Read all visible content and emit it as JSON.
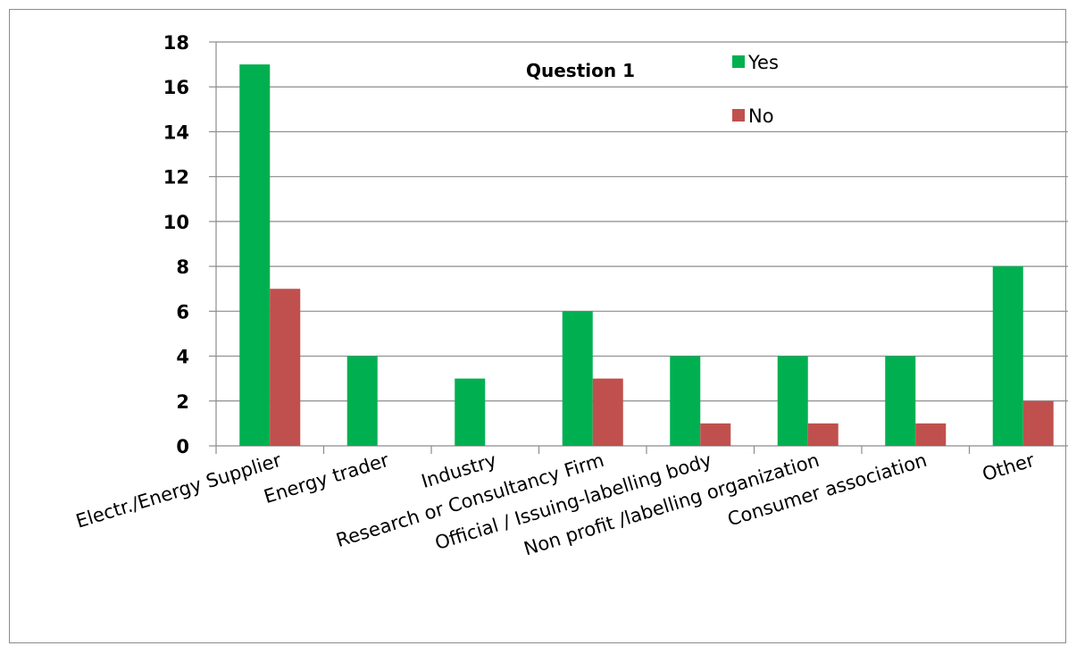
{
  "chart_data": {
    "type": "bar",
    "title": "Question 1",
    "xlabel": "",
    "ylabel": "",
    "categories": [
      "Electr./Energy Supplier",
      "Energy trader",
      "Industry",
      "Research or Consultancy Firm",
      "Official / Issuing-labelling body",
      "Non profit /labelling organization",
      "Consumer association",
      "Other"
    ],
    "series": [
      {
        "name": "Yes",
        "color": "#00b050",
        "values": [
          17,
          4,
          3,
          6,
          4,
          4,
          4,
          8
        ]
      },
      {
        "name": "No",
        "color": "#c0504d",
        "values": [
          7,
          0,
          0,
          3,
          1,
          1,
          1,
          2
        ]
      }
    ],
    "ylim": [
      0,
      18
    ],
    "yticks": [
      0,
      2,
      4,
      6,
      8,
      10,
      12,
      14,
      16,
      18
    ],
    "grid": true,
    "legend_position": "top-center"
  }
}
